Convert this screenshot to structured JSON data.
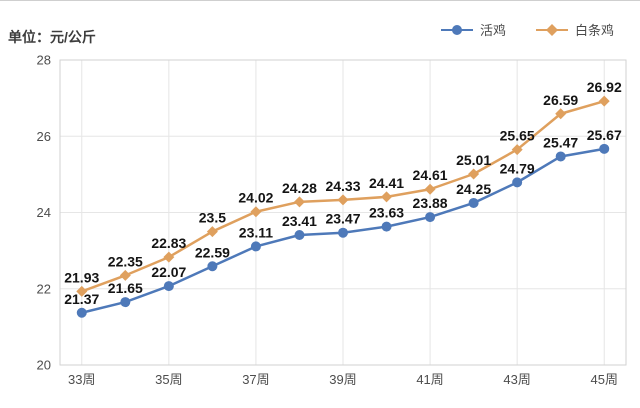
{
  "header": {
    "unit_label": "单位：元/公斤"
  },
  "legend": {
    "items": [
      {
        "label": "活鸡",
        "color": "#4e79b9",
        "marker": "circle"
      },
      {
        "label": "白条鸡",
        "color": "#dfa05e",
        "marker": "diamond"
      }
    ]
  },
  "chart_data": {
    "type": "line",
    "title": "",
    "ylabel_unit": "元/公斤",
    "weeks": [
      33,
      34,
      35,
      36,
      37,
      38,
      39,
      40,
      41,
      42,
      43,
      44,
      45
    ],
    "x_tick_labels": [
      "33周",
      "35周",
      "37周",
      "39周",
      "41周",
      "43周",
      "45周"
    ],
    "ylim": [
      20,
      28
    ],
    "yticks": [
      20,
      22,
      24,
      26,
      28
    ],
    "grid": true,
    "legend_position": "top-right",
    "series": [
      {
        "name": "活鸡",
        "color": "#4e79b9",
        "marker": "circle",
        "values": [
          21.37,
          21.65,
          22.07,
          22.59,
          23.11,
          23.41,
          23.47,
          23.63,
          23.88,
          24.25,
          24.79,
          25.47,
          25.67
        ]
      },
      {
        "name": "白条鸡",
        "color": "#dfa05e",
        "marker": "diamond",
        "values": [
          21.93,
          22.35,
          22.83,
          23.5,
          24.02,
          24.28,
          24.33,
          24.41,
          24.61,
          25.01,
          25.65,
          26.59,
          26.92
        ]
      }
    ],
    "colors": {
      "grid": "#e6e6e6",
      "plot_border": "#d2d2d2",
      "tick_text": "#4d4d4d",
      "data_label": "#141414"
    }
  }
}
